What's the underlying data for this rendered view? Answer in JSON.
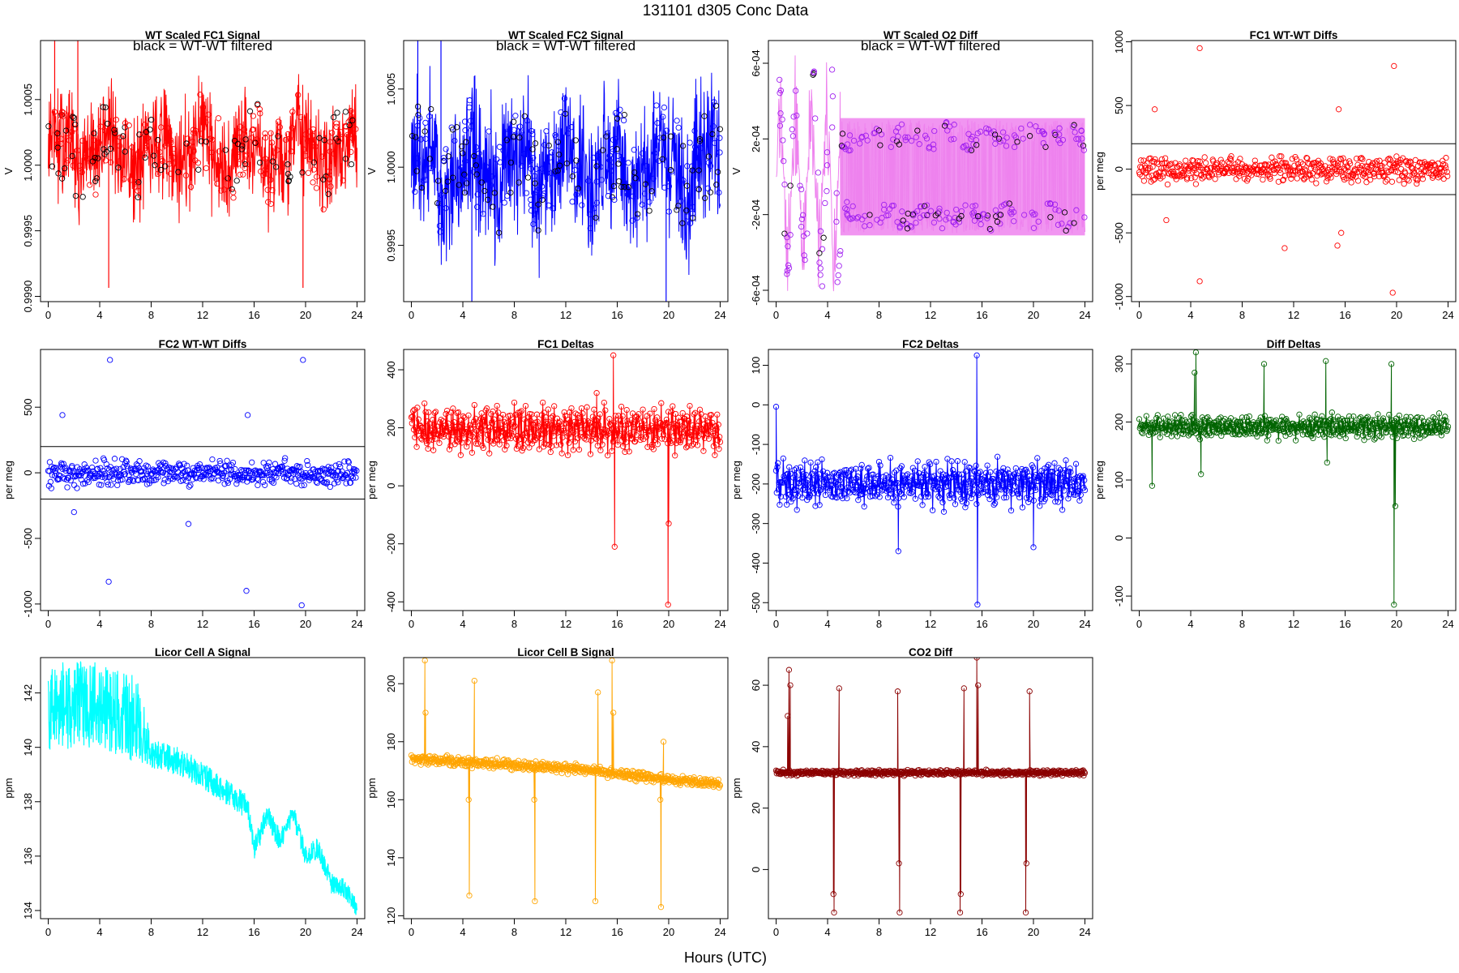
{
  "figure": {
    "title": "131101    d305    Conc Data",
    "xlabel": "Hours (UTC)"
  },
  "chart_data": [
    {
      "id": "fc1_signal",
      "type": "line",
      "title": "WT Scaled FC1 Signal",
      "note": "black = WT-WT filtered",
      "ylabel": "V",
      "xlim": [
        -0.6,
        24.6
      ],
      "ylim": [
        0.99896,
        1.00095
      ],
      "xticks": [
        0,
        4,
        8,
        12,
        16,
        20,
        24
      ],
      "yticks": [
        0.999,
        0.9995,
        1.0,
        1.0005
      ],
      "ytick_labels": [
        "0.9990",
        "0.9995",
        "1.0000",
        "1.0005"
      ],
      "color": "#ff0000",
      "mode": "band",
      "base": 1.0001,
      "spread": 0.00023,
      "marker_color": "#000000"
    },
    {
      "id": "fc2_signal",
      "type": "line",
      "title": "WT Scaled FC2 Signal",
      "note": "black = WT-WT filtered",
      "ylabel": "V",
      "xlim": [
        -0.6,
        24.6
      ],
      "ylim": [
        0.99914,
        1.00081
      ],
      "xticks": [
        0,
        4,
        8,
        12,
        16,
        20,
        24
      ],
      "yticks": [
        0.9995,
        1.0,
        1.0005
      ],
      "ytick_labels": [
        "0.9995",
        "1.0000",
        "1.0005"
      ],
      "color": "#0000ff",
      "mode": "band",
      "base": 1.0,
      "spread": 0.00025,
      "marker_color": "#000000"
    },
    {
      "id": "o2_diff",
      "type": "line",
      "title": "WT Scaled O2 Diff",
      "note": "black = WT-WT filtered",
      "ylabel": "V",
      "xlim": [
        -0.6,
        24.6
      ],
      "ylim": [
        -0.00066,
        0.00072
      ],
      "xticks": [
        0,
        4,
        8,
        12,
        16,
        20,
        24
      ],
      "yticks": [
        -0.0006,
        -0.0002,
        0.0002,
        0.0006
      ],
      "ytick_labels": [
        "-6e-04",
        "-2e-04",
        "2e-04",
        "6e-04"
      ],
      "color": "#ee82ee",
      "mode": "split",
      "marker_color": "#a020f0"
    },
    {
      "id": "fc1_wtwt",
      "type": "scatter",
      "title": "FC1 WT-WT Diffs",
      "ylabel": "per meg",
      "xlim": [
        -0.6,
        24.6
      ],
      "ylim": [
        -1040,
        1010
      ],
      "xticks": [
        0,
        4,
        8,
        12,
        16,
        20,
        24
      ],
      "yticks": [
        -1000,
        -500,
        0,
        500,
        1000
      ],
      "ytick_labels": [
        "-1000",
        "-500",
        "0",
        "500",
        "1000"
      ],
      "hlines": [
        200,
        -200
      ],
      "color": "#ff0000",
      "spread": 110,
      "outliers": [
        [
          4.7,
          950
        ],
        [
          19.8,
          810
        ],
        [
          15.5,
          470
        ],
        [
          1.2,
          470
        ],
        [
          4.7,
          -880
        ],
        [
          19.7,
          -970
        ],
        [
          11.3,
          -620
        ],
        [
          15.4,
          -600
        ],
        [
          2.1,
          -400
        ],
        [
          15.7,
          -500
        ]
      ]
    },
    {
      "id": "fc2_wtwt",
      "type": "scatter",
      "title": "FC2 WT-WT Diffs",
      "ylabel": "per meg",
      "xlim": [
        -0.6,
        24.6
      ],
      "ylim": [
        -1050,
        940
      ],
      "xticks": [
        0,
        4,
        8,
        12,
        16,
        20,
        24
      ],
      "yticks": [
        -1000,
        -500,
        0,
        500
      ],
      "ytick_labels": [
        "-1000",
        "-500",
        "0",
        "500"
      ],
      "hlines": [
        200,
        -200
      ],
      "color": "#0000ff",
      "spread": 110,
      "outliers": [
        [
          4.8,
          860
        ],
        [
          19.8,
          860
        ],
        [
          15.5,
          440
        ],
        [
          1.1,
          440
        ],
        [
          4.7,
          -830
        ],
        [
          19.7,
          -1010
        ],
        [
          15.4,
          -900
        ],
        [
          10.9,
          -390
        ],
        [
          2.0,
          -300
        ]
      ]
    },
    {
      "id": "fc1_deltas",
      "type": "line",
      "title": "FC1 Deltas",
      "ylabel": "per meg",
      "xlim": [
        -0.6,
        24.6
      ],
      "ylim": [
        -430,
        470
      ],
      "xticks": [
        0,
        4,
        8,
        12,
        16,
        20,
        24
      ],
      "yticks": [
        -400,
        -200,
        0,
        200,
        400
      ],
      "ytick_labels": [
        "-400",
        "-200",
        "0",
        "200",
        "400"
      ],
      "color": "#ff0000",
      "base": 195,
      "spread": 55,
      "spikes": [
        [
          15.7,
          450
        ],
        [
          15.8,
          -210
        ],
        [
          19.95,
          -410
        ],
        [
          20.0,
          -130
        ],
        [
          14.4,
          320
        ]
      ]
    },
    {
      "id": "fc2_deltas",
      "type": "line",
      "title": "FC2 Deltas",
      "ylabel": "per meg",
      "xlim": [
        -0.6,
        24.6
      ],
      "ylim": [
        -520,
        140
      ],
      "xticks": [
        0,
        4,
        8,
        12,
        16,
        20,
        24
      ],
      "yticks": [
        -500,
        -400,
        -300,
        -200,
        -100,
        0,
        100
      ],
      "ytick_labels": [
        "-500",
        "-400",
        "-300",
        "-200",
        "-100",
        "0",
        "100"
      ],
      "color": "#0000ff",
      "base": -200,
      "spread": 40,
      "spikes": [
        [
          15.6,
          125
        ],
        [
          15.65,
          -505
        ],
        [
          0.0,
          -5
        ],
        [
          9.5,
          -370
        ],
        [
          20.0,
          -360
        ]
      ]
    },
    {
      "id": "diff_deltas",
      "type": "line",
      "title": "Diff Deltas",
      "ylabel": "per meg",
      "xlim": [
        -0.6,
        24.6
      ],
      "ylim": [
        -125,
        325
      ],
      "xticks": [
        0,
        4,
        8,
        12,
        16,
        20,
        24
      ],
      "yticks": [
        -100,
        0,
        100,
        200,
        300
      ],
      "ytick_labels": [
        "-100",
        "0",
        "100",
        "200",
        "300"
      ],
      "color": "#006400",
      "base": 192,
      "spread": 14,
      "spikes": [
        [
          4.4,
          320
        ],
        [
          4.3,
          285
        ],
        [
          9.7,
          300
        ],
        [
          14.5,
          305
        ],
        [
          19.6,
          300
        ],
        [
          19.8,
          -115
        ],
        [
          19.9,
          55
        ],
        [
          4.8,
          110
        ],
        [
          1.0,
          90
        ],
        [
          14.6,
          130
        ]
      ]
    },
    {
      "id": "licor_a",
      "type": "line",
      "title": "Licor Cell A Signal",
      "ylabel": "ppm",
      "xlim": [
        -0.6,
        24.6
      ],
      "ylim": [
        133.7,
        143.3
      ],
      "xticks": [
        0,
        4,
        8,
        12,
        16,
        20,
        24
      ],
      "yticks": [
        134,
        136,
        138,
        140,
        142
      ],
      "ytick_labels": [
        "134",
        "136",
        "138",
        "140",
        "142"
      ],
      "color": "#00ffff",
      "mode": "trendband",
      "trend_x": [
        0,
        4,
        7,
        8,
        10,
        12,
        14,
        15.5,
        16,
        17,
        18,
        19,
        20,
        21,
        22,
        23,
        24
      ],
      "trend_y": [
        141.5,
        141.6,
        141.0,
        139.8,
        139.5,
        139.0,
        138.3,
        137.8,
        136.2,
        137.5,
        136.6,
        137.6,
        136.0,
        136.3,
        135.0,
        134.8,
        134.1
      ],
      "spread_x": [
        0,
        7,
        8,
        24
      ],
      "spread_y": [
        1.6,
        1.6,
        0.55,
        0.35
      ]
    },
    {
      "id": "licor_b",
      "type": "line",
      "title": "Licor Cell B Signal",
      "ylabel": "ppm",
      "xlim": [
        -0.6,
        24.6
      ],
      "ylim": [
        119,
        209
      ],
      "xticks": [
        0,
        4,
        8,
        12,
        16,
        20,
        24
      ],
      "yticks": [
        120,
        140,
        160,
        180,
        200
      ],
      "ytick_labels": [
        "120",
        "140",
        "160",
        "180",
        "200"
      ],
      "color": "#ffa500",
      "base_x": [
        0,
        4,
        8,
        12,
        16,
        20,
        24
      ],
      "base_y": [
        174,
        173,
        172,
        171,
        169,
        167,
        165.5
      ],
      "spread": 1.2,
      "spikes": [
        [
          1.05,
          208
        ],
        [
          1.1,
          190
        ],
        [
          4.5,
          127
        ],
        [
          4.45,
          160
        ],
        [
          4.9,
          201
        ],
        [
          9.6,
          125
        ],
        [
          9.55,
          160
        ],
        [
          14.3,
          125
        ],
        [
          14.5,
          197
        ],
        [
          14.35,
          170
        ],
        [
          15.6,
          208
        ],
        [
          15.7,
          190
        ],
        [
          19.4,
          123
        ],
        [
          19.35,
          160
        ],
        [
          19.6,
          180
        ]
      ]
    },
    {
      "id": "co2_diff",
      "type": "line",
      "title": "CO2 Diff",
      "ylabel": "ppm",
      "xlim": [
        -0.6,
        24.6
      ],
      "ylim": [
        -16,
        69
      ],
      "xticks": [
        0,
        4,
        8,
        12,
        16,
        20,
        24
      ],
      "yticks": [
        0,
        20,
        40,
        60
      ],
      "ytick_labels": [
        "0",
        "20",
        "40",
        "60"
      ],
      "color": "#8b0000",
      "base": 31.5,
      "spread": 0.6,
      "spikes": [
        [
          1.0,
          65
        ],
        [
          1.1,
          60
        ],
        [
          0.9,
          50
        ],
        [
          4.5,
          -14
        ],
        [
          4.45,
          -8
        ],
        [
          4.9,
          59
        ],
        [
          9.6,
          -14
        ],
        [
          9.55,
          2
        ],
        [
          9.45,
          58
        ],
        [
          14.3,
          -14
        ],
        [
          14.35,
          -8
        ],
        [
          14.6,
          59
        ],
        [
          15.6,
          69
        ],
        [
          15.7,
          60
        ],
        [
          19.4,
          -14
        ],
        [
          19.45,
          2
        ],
        [
          19.7,
          58
        ]
      ]
    }
  ]
}
